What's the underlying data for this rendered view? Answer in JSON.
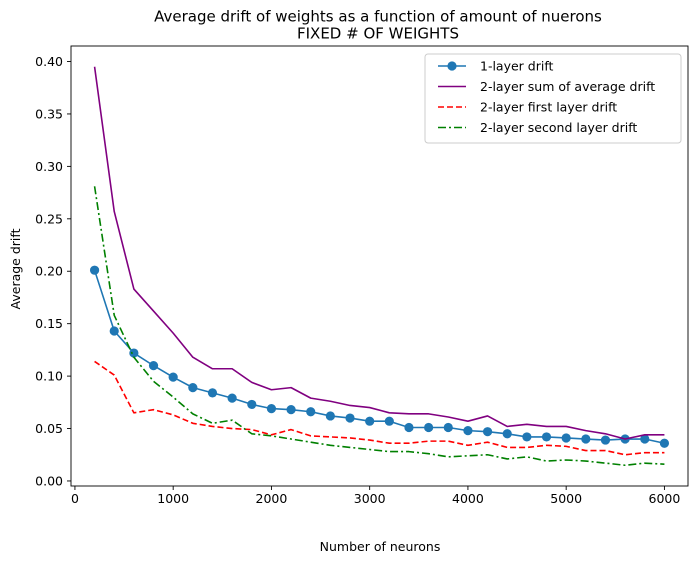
{
  "chart_data": {
    "type": "line",
    "title": "Average drift of weights as a function of amount of nuerons",
    "subtitle": "FIXED # OF WEIGHTS",
    "xlabel": "Number of neurons",
    "ylabel": "Average drift",
    "xlim": [
      -40,
      6240
    ],
    "ylim": [
      -0.0048,
      0.4148
    ],
    "xticks": [
      0,
      1000,
      2000,
      3000,
      4000,
      5000,
      6000
    ],
    "yticks": [
      0.0,
      0.05,
      0.1,
      0.15,
      0.2,
      0.25,
      0.3,
      0.35,
      0.4
    ],
    "xtick_labels": [
      "0",
      "1000",
      "2000",
      "3000",
      "4000",
      "5000",
      "6000"
    ],
    "ytick_labels": [
      "0.00",
      "0.05",
      "0.10",
      "0.15",
      "0.20",
      "0.25",
      "0.30",
      "0.35",
      "0.40"
    ],
    "grid": false,
    "legend_position": "top-right",
    "x": [
      200,
      400,
      600,
      800,
      1000,
      1200,
      1400,
      1600,
      1800,
      2000,
      2200,
      2400,
      2600,
      2800,
      3000,
      3200,
      3400,
      3600,
      3800,
      4000,
      4200,
      4400,
      4600,
      4800,
      5000,
      5200,
      5400,
      5600,
      5800,
      6000
    ],
    "series": [
      {
        "name": "1-layer drift",
        "color": "#1f77b4",
        "style": "solid-marker",
        "values": [
          0.201,
          0.143,
          0.122,
          0.11,
          0.099,
          0.089,
          0.084,
          0.079,
          0.073,
          0.069,
          0.068,
          0.066,
          0.062,
          0.06,
          0.057,
          0.057,
          0.051,
          0.051,
          0.051,
          0.048,
          0.047,
          0.045,
          0.042,
          0.042,
          0.041,
          0.04,
          0.039,
          0.04,
          0.04,
          0.036
        ]
      },
      {
        "name": "2-layer sum of average drift",
        "color": "#800080",
        "style": "solid",
        "values": [
          0.395,
          0.257,
          0.183,
          0.162,
          0.141,
          0.118,
          0.107,
          0.107,
          0.094,
          0.087,
          0.089,
          0.079,
          0.076,
          0.072,
          0.07,
          0.065,
          0.064,
          0.064,
          0.061,
          0.057,
          0.062,
          0.052,
          0.054,
          0.052,
          0.052,
          0.048,
          0.045,
          0.04,
          0.044,
          0.044
        ]
      },
      {
        "name": "2-layer first layer drift",
        "color": "#ff0000",
        "style": "dashed",
        "values": [
          0.114,
          0.101,
          0.065,
          0.068,
          0.063,
          0.055,
          0.052,
          0.05,
          0.049,
          0.044,
          0.049,
          0.043,
          0.042,
          0.041,
          0.039,
          0.036,
          0.036,
          0.038,
          0.038,
          0.034,
          0.037,
          0.032,
          0.032,
          0.034,
          0.033,
          0.029,
          0.029,
          0.025,
          0.027,
          0.027
        ]
      },
      {
        "name": "2-layer second layer drift",
        "color": "#008000",
        "style": "dashdot",
        "values": [
          0.281,
          0.158,
          0.118,
          0.095,
          0.08,
          0.064,
          0.055,
          0.058,
          0.045,
          0.043,
          0.04,
          0.037,
          0.034,
          0.032,
          0.03,
          0.028,
          0.028,
          0.026,
          0.023,
          0.024,
          0.025,
          0.021,
          0.023,
          0.019,
          0.02,
          0.019,
          0.017,
          0.015,
          0.017,
          0.016
        ]
      }
    ]
  }
}
